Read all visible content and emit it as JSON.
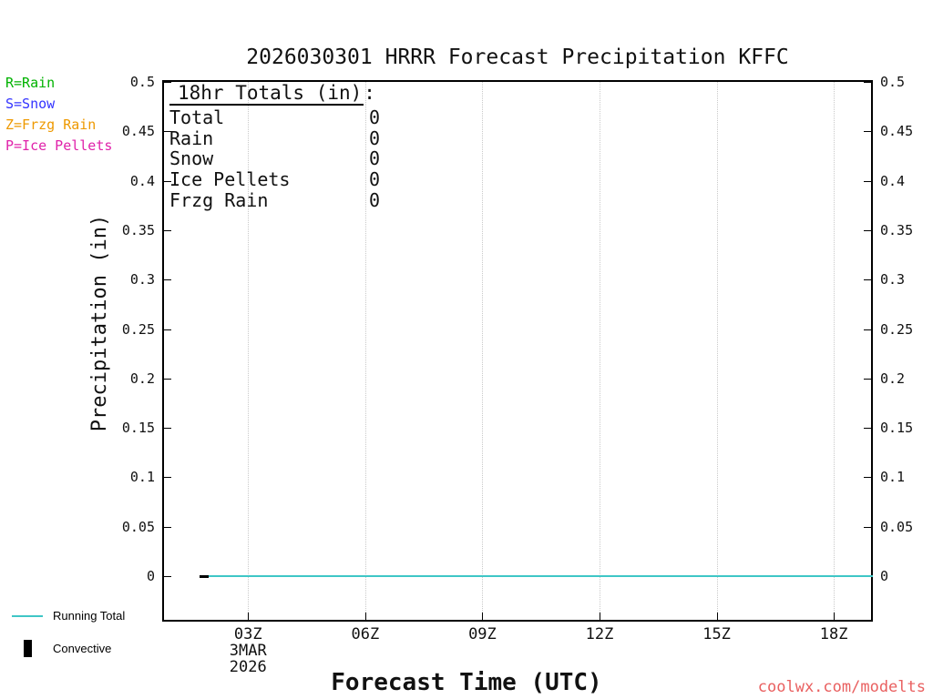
{
  "title": "2026030301 HRRR Forecast Precipitation KFFC",
  "y_axis_label": "Precipitation (in)",
  "x_axis_label": "Forecast Time (UTC)",
  "legend_top_left": [
    {
      "label": "R=Rain",
      "color": "#00b200"
    },
    {
      "label": "S=Snow",
      "color": "#3333ff"
    },
    {
      "label": "Z=Frzg Rain",
      "color": "#ee9900"
    },
    {
      "label": "P=Ice Pellets",
      "color": "#e022aa"
    }
  ],
  "totals_box": {
    "heading": "18hr Totals (in)",
    "heading_suffix": ":",
    "rows": [
      {
        "label": "Total",
        "value": "0"
      },
      {
        "label": "Rain",
        "value": "0"
      },
      {
        "label": "Snow",
        "value": "0"
      },
      {
        "label": "Ice Pellets",
        "value": "0"
      },
      {
        "label": "Frzg Rain",
        "value": "0"
      }
    ]
  },
  "bottom_legend": {
    "running_total": {
      "label": "Running Total",
      "color": "#3fc6c6"
    },
    "convective": {
      "label": "Convective",
      "color": "#000000"
    }
  },
  "watermark": {
    "text": "coolwx.com/modelts",
    "color": "#e96060"
  },
  "chart_data": {
    "type": "line",
    "title": "2026030301 HRRR Forecast Precipitation KFFC",
    "xlabel": "Forecast Time (UTC)",
    "ylabel": "Precipitation (in)",
    "xlim_hours_utc": [
      0.8,
      19
    ],
    "ylim": [
      0,
      0.5
    ],
    "grid": "vertical dotted lines at x ticks",
    "y_tick_values": [
      0,
      0.05,
      0.1,
      0.15,
      0.2,
      0.25,
      0.3,
      0.35,
      0.4,
      0.45,
      0.5
    ],
    "y_tick_labels": [
      "0",
      "0.05",
      "0.1",
      "0.15",
      "0.2",
      "0.25",
      "0.3",
      "0.35",
      "0.4",
      "0.45",
      "0.5"
    ],
    "x_tick_hours": [
      3,
      6,
      9,
      12,
      15,
      18
    ],
    "x_tick_labels": [
      "03Z",
      "06Z",
      "09Z",
      "12Z",
      "15Z",
      "18Z"
    ],
    "x_date_sublabels": [
      "3MAR",
      "2026"
    ],
    "series": [
      {
        "name": "Running Total",
        "color": "#3fc6c6",
        "x_hours": [
          2,
          19
        ],
        "values": [
          0,
          0
        ]
      },
      {
        "name": "Convective",
        "type": "bar",
        "color": "#000000",
        "x_hours": [],
        "values": []
      }
    ],
    "legend_position": "outside-left and below"
  }
}
